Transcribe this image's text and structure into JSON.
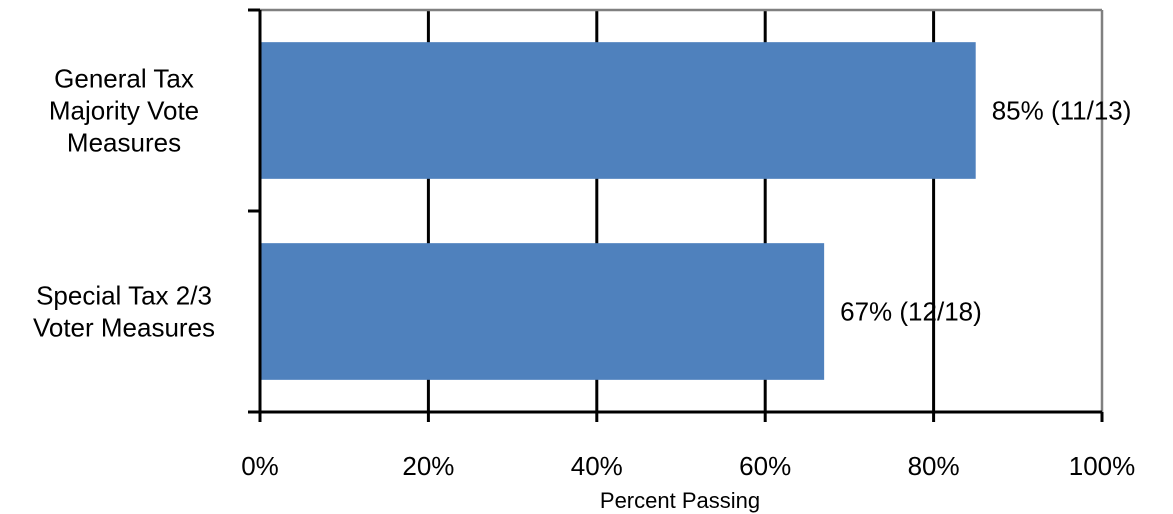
{
  "chart_data": {
    "type": "bar",
    "orientation": "horizontal",
    "categories": [
      [
        "General Tax",
        "Majority Vote",
        "Measures"
      ],
      [
        "Special Tax 2/3",
        "Voter Measures"
      ]
    ],
    "values": [
      85,
      67
    ],
    "data_labels": [
      "85% (11/13)",
      "67% (12/18)"
    ],
    "xlabel": "Percent Passing",
    "ylabel": "",
    "xlim": [
      0,
      100
    ],
    "x_ticks": [
      0,
      20,
      40,
      60,
      80,
      100
    ],
    "x_tick_labels": [
      "0%",
      "20%",
      "40%",
      "60%",
      "80%",
      "100%"
    ],
    "grid": true,
    "bar_color": "#4F81BD"
  }
}
